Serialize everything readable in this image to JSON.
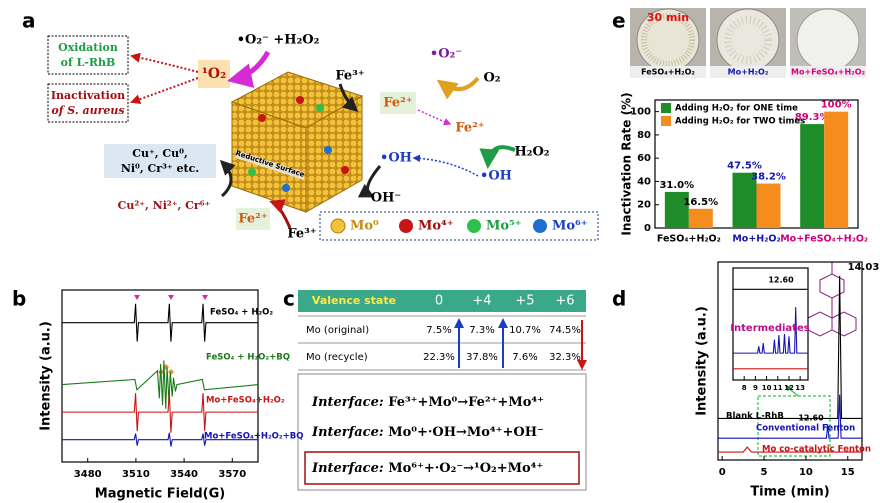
{
  "diagram": {
    "panel": "a",
    "outcomes": [
      "Oxidation",
      "of L-RhB",
      "Inactivation",
      "of S. aureus"
    ],
    "singlet": "¹O₂",
    "superoxide_h2o2": "•O₂⁻ +H₂O₂",
    "fe3_top": "Fe³⁺",
    "fe2_box": "Fe²⁺",
    "superoxide": "•O₂⁻",
    "o2": "O₂",
    "fe2_mid": "Fe²⁺",
    "h2o2": "H₂O₂",
    "oh_left": "•OH",
    "oh_right": "•OH",
    "oh_minus": "OH⁻",
    "reduced_metals": [
      "Cu⁺, Cu⁰,",
      "Ni⁰, Cr³⁺ etc."
    ],
    "oxidized_metals": "Cu²⁺, Ni²⁺, Cr⁶⁺",
    "fe2_bottom": "Fe²⁺",
    "fe3_bottom": "Fe³⁺",
    "surface": "Reductive Surface",
    "legend": [
      "Mo⁰",
      "Mo⁴⁺",
      "Mo⁵⁺",
      "Mo⁶⁺"
    ]
  },
  "table_panel": {
    "panel": "c",
    "header": [
      "Valence state",
      "0",
      "+4",
      "+5",
      "+6"
    ],
    "rows": [
      [
        "Mo (original)",
        "7.5%",
        "7.3%",
        "10.7%",
        "74.5%"
      ],
      [
        "Mo (recycle)",
        "22.3%",
        "37.8%",
        "7.6%",
        "32.3%"
      ]
    ],
    "equations": [
      {
        "prefix": "Interface:",
        "text": "Fe³⁺+Mo⁰→Fe²⁺+Mo⁴⁺"
      },
      {
        "prefix": "Interface:",
        "text": "Mo⁰+·OH→Mo⁴⁺+OH⁻"
      },
      {
        "prefix": "Interface:",
        "text": "Mo⁶⁺+·O₂⁻→¹O₂+Mo⁴⁺"
      }
    ]
  },
  "chart_data": [
    {
      "type": "line",
      "panel": "b",
      "xlabel": "Magnetic Field(G)",
      "ylabel": "Intensity (a.u.)",
      "xlim": [
        3464,
        3586
      ],
      "xticks": [
        3480,
        3510,
        3540,
        3570
      ],
      "ylim": [
        0,
        10
      ],
      "series": [
        {
          "name": "FeSO₄ + H₂O₂",
          "color": "#000000",
          "x": [
            3464,
            3509,
            3509.8,
            3510.8,
            3511.6,
            3530,
            3530.8,
            3531.8,
            3532.6,
            3551,
            3551.8,
            3552.8,
            3553.6,
            3586
          ],
          "values": [
            8.1,
            8.1,
            9.2,
            7.0,
            8.1,
            8.1,
            9.2,
            7.0,
            8.1,
            8.1,
            9.2,
            7.0,
            8.1,
            8.1
          ]
        },
        {
          "name": "FeSO₄ + H₂O₂+BQ",
          "color": "#1a7a1a",
          "x": [
            3464,
            3509.4,
            3510.6,
            3523.4,
            3524.6,
            3525.4,
            3526.6,
            3527.4,
            3528.6,
            3529.4,
            3530.6,
            3531.4,
            3532.6,
            3533.4,
            3534.6,
            3535.5,
            3551.4,
            3552.6,
            3586
          ],
          "values": [
            4.5,
            4.8,
            4.2,
            5.3,
            3.7,
            5.7,
            3.3,
            5.9,
            3.1,
            5.5,
            3.5,
            5.2,
            3.8,
            4.9,
            4.1,
            4.5,
            4.8,
            4.2,
            4.5
          ]
        },
        {
          "name": "Mo+FeSO₄+H₂O₂",
          "color": "#c81414",
          "x": [
            3464,
            3509,
            3509.8,
            3510.8,
            3511.6,
            3530,
            3530.8,
            3531.8,
            3532.6,
            3551,
            3551.8,
            3552.8,
            3553.6,
            3586
          ],
          "values": [
            2.9,
            2.9,
            4.0,
            1.8,
            2.9,
            2.9,
            4.1,
            1.7,
            2.9,
            2.9,
            4.0,
            1.8,
            2.9,
            2.9
          ]
        },
        {
          "name": "Mo+FeSO₄+H₂O₂+BQ",
          "color": "#1414b4",
          "x": [
            3464,
            3509,
            3509.8,
            3510.8,
            3511.6,
            3530,
            3530.8,
            3531.8,
            3532.6,
            3551,
            3551.8,
            3552.8,
            3553.6,
            3586
          ],
          "values": [
            1.3,
            1.3,
            1.65,
            0.95,
            1.3,
            1.3,
            1.7,
            0.9,
            1.3,
            1.3,
            1.65,
            0.95,
            1.3,
            1.3
          ]
        }
      ]
    },
    {
      "type": "line",
      "panel": "d",
      "xlabel": "Time (min)",
      "ylabel": "Intensity (a.u.)",
      "xlim": [
        -0.5,
        16.7
      ],
      "xticks": [
        0,
        5,
        10,
        15
      ],
      "ylim": [
        0,
        10
      ],
      "peaks": [
        14.03,
        {
          "value": 12.6,
          "label": "12.60"
        }
      ],
      "series": [
        {
          "name": "Blank L-RhB",
          "color": "#000000",
          "x": [
            -0.5,
            13.8,
            14.03,
            14.25,
            16.7
          ],
          "values": [
            2.1,
            2.1,
            9.3,
            2.1,
            2.1
          ]
        },
        {
          "name": "Conventional Fenton",
          "color": "#1414b4",
          "x": [
            -0.5,
            12.45,
            12.6,
            12.75,
            13.85,
            14.03,
            14.2,
            16.7
          ],
          "values": [
            1.1,
            1.1,
            1.8,
            1.1,
            1.1,
            3.3,
            1.1,
            1.1
          ]
        },
        {
          "name": "Mo co-catalytic Fenton",
          "color": "#c81414",
          "x": [
            -0.5,
            2.5,
            3.0,
            3.5,
            16.7
          ],
          "values": [
            0.4,
            0.4,
            0.65,
            0.4,
            0.4
          ]
        }
      ]
    },
    {
      "type": "line",
      "annotation": "Intermediates",
      "xlim": [
        7,
        13.7
      ],
      "xticks": [
        8,
        9,
        10,
        11,
        12,
        13
      ],
      "ylim": [
        0,
        10
      ],
      "peaks": [
        {
          "value": 12.6,
          "label": "12.60"
        }
      ],
      "series": [
        {
          "color": "#000000",
          "x": [
            7,
            13.7
          ],
          "values": [
            8.1,
            8.1
          ]
        },
        {
          "color": "#1414b4",
          "x": [
            7,
            9.2,
            9.3,
            9.4,
            9.6,
            9.7,
            9.8,
            10.6,
            10.7,
            10.8,
            11.0,
            11.1,
            11.2,
            11.5,
            11.6,
            11.7,
            11.9,
            12.0,
            12.1,
            12.5,
            12.6,
            12.7,
            13.7
          ],
          "values": [
            2.4,
            2.4,
            3.0,
            2.4,
            2.4,
            3.3,
            2.4,
            2.4,
            3.6,
            2.4,
            2.4,
            4.0,
            2.4,
            2.4,
            4.1,
            2.4,
            2.4,
            3.9,
            2.4,
            2.4,
            6.5,
            2.4,
            2.4
          ]
        },
        {
          "color": "#c81414",
          "x": [
            7,
            13.7
          ],
          "values": [
            1.0,
            1.0
          ]
        }
      ]
    },
    {
      "type": "bar",
      "panel": "e",
      "ylabel": "Inactivation Rate (%)",
      "time_label": "30 min",
      "photos": [
        "FeSO₄+H₂O₂",
        "Mo+H₂O₂",
        "Mo+FeSO₄+H₂O₂"
      ],
      "categories": [
        "FeSO₄+H₂O₂",
        "Mo+H₂O₂",
        "Mo+FeSO₄+H₂O₂"
      ],
      "category_colors": [
        "#000000",
        "#1414b4",
        "#d6007e"
      ],
      "ylim": [
        0,
        110
      ],
      "yticks": [
        0,
        20,
        40,
        60,
        80,
        100
      ],
      "legend": "top-left",
      "series": [
        {
          "name": "Adding H₂O₂ for ONE time",
          "color": "#1e8c28",
          "values": [
            31.0,
            47.5,
            89.3
          ],
          "value_labels": [
            "31.0%",
            "47.5%",
            "89.3%"
          ]
        },
        {
          "name": "Adding H₂O₂ for TWO times",
          "color": "#f58c1e",
          "values": [
            16.5,
            38.2,
            100
          ],
          "value_labels": [
            "16.5%",
            "38.2%",
            "100%"
          ]
        }
      ]
    }
  ]
}
